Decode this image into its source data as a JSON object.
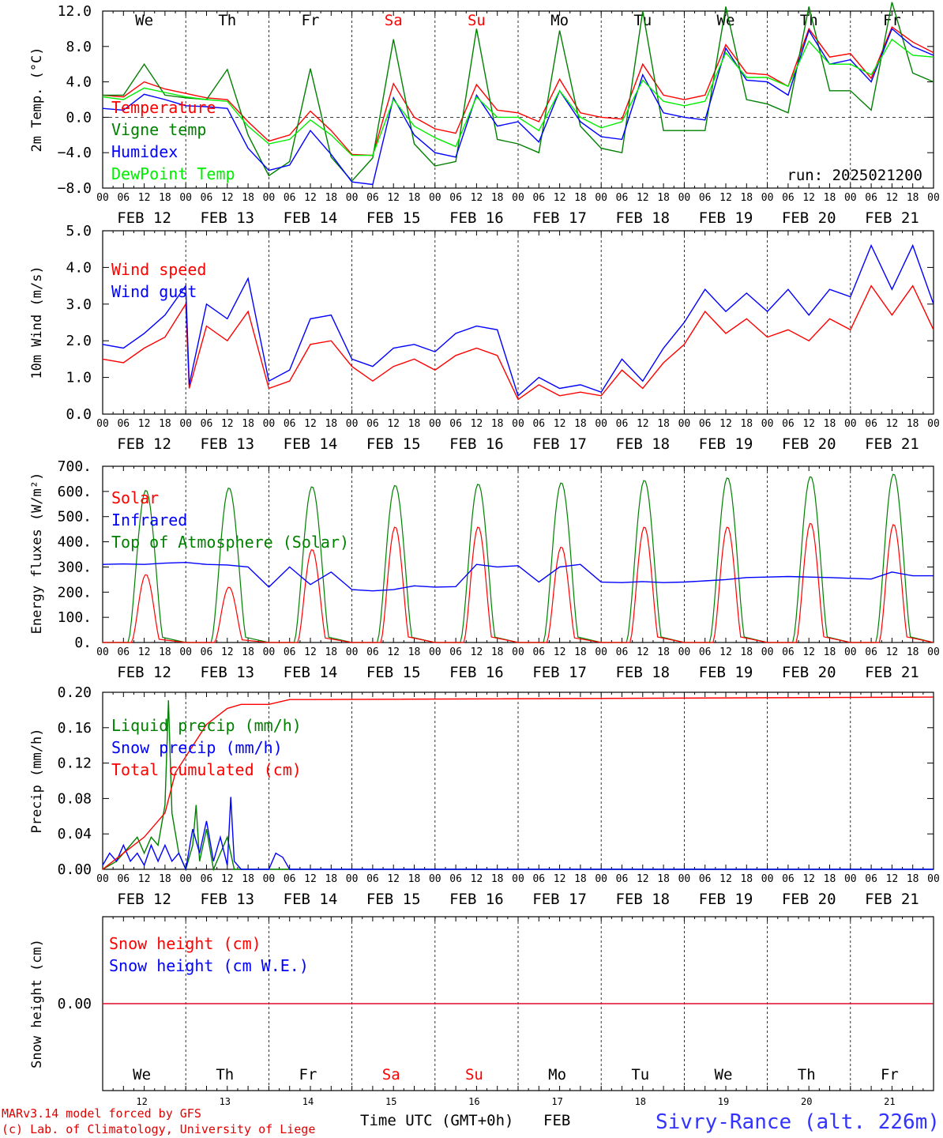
{
  "run_label": "run: 2025021200",
  "footer": {
    "model": "MARv3.14 model forced by GFS",
    "credit": "(c) Lab. of Climatology, University of Liege",
    "time_axis": "Time UTC (GMT+0h)",
    "month": "FEB",
    "location": "Sivry-Rance (alt. 226m)"
  },
  "days": [
    "12",
    "13",
    "14",
    "15",
    "16",
    "17",
    "18",
    "19",
    "20",
    "21"
  ],
  "date_labels": [
    "FEB 12",
    "FEB 13",
    "FEB 14",
    "FEB 15",
    "FEB 16",
    "FEB 17",
    "FEB 18",
    "FEB 19",
    "FEB 20",
    "FEB 21"
  ],
  "weekdays": [
    "We",
    "Th",
    "Fr",
    "Sa",
    "Su",
    "Mo",
    "Tu",
    "We",
    "Th",
    "Fr"
  ],
  "weekday_colors": [
    "#000000",
    "#000000",
    "#000000",
    "#ff0000",
    "#ff0000",
    "#000000",
    "#000000",
    "#000000",
    "#000000",
    "#000000"
  ],
  "hour_ticks": [
    "00",
    "06",
    "12",
    "18"
  ],
  "colors": {
    "red": "#ff0000",
    "green": "#008000",
    "blue": "#0000ff",
    "lightgreen": "#00ee00"
  },
  "chart_data": [
    {
      "type": "line",
      "ylabel": "2m Temp. (°C)",
      "ylim": [
        -8,
        12
      ],
      "yticks": [
        "12.0",
        "8.0",
        "4.0",
        "0.0",
        "−4.0",
        "−8.0"
      ],
      "x_unit": "hours since FEB 12 00 UTC",
      "series": [
        {
          "name": "Temperature",
          "color": "#ff0000",
          "x": [
            0,
            6,
            12,
            18,
            24,
            30,
            36,
            42,
            48,
            54,
            60,
            66,
            72,
            78,
            84,
            90,
            96,
            102,
            108,
            114,
            120,
            126,
            132,
            138,
            144,
            150,
            156,
            162,
            168,
            174,
            180,
            186,
            192,
            198,
            204,
            210,
            216,
            222,
            228,
            234,
            240
          ],
          "y": [
            2.5,
            2.3,
            4.0,
            3.2,
            2.7,
            2.2,
            2.0,
            -0.5,
            -2.7,
            -2.0,
            0.7,
            -1.5,
            -4.2,
            -4.3,
            3.8,
            0.0,
            -1.3,
            -1.8,
            3.7,
            0.8,
            0.5,
            -0.5,
            4.3,
            0.5,
            0.0,
            -0.2,
            6.0,
            2.5,
            2.0,
            2.5,
            8.2,
            5.0,
            4.8,
            3.5,
            10.0,
            6.8,
            7.2,
            4.4,
            10.2,
            8.5,
            7.3
          ]
        },
        {
          "name": "Vigne temp",
          "color": "#008000",
          "x": [
            0,
            6,
            12,
            18,
            24,
            30,
            36,
            42,
            48,
            54,
            60,
            66,
            72,
            78,
            84,
            90,
            96,
            102,
            108,
            114,
            120,
            126,
            132,
            138,
            144,
            150,
            156,
            162,
            168,
            174,
            180,
            186,
            192,
            198,
            204,
            210,
            216,
            222,
            228,
            234,
            240
          ],
          "y": [
            2.5,
            2.5,
            6.0,
            2.5,
            2.2,
            2.0,
            5.4,
            -2.0,
            -6.6,
            -5.0,
            5.5,
            -4.5,
            -7.2,
            -4.6,
            8.8,
            -3.0,
            -5.5,
            -5.0,
            10.0,
            -2.5,
            -3.0,
            -4.0,
            9.8,
            -1.0,
            -3.5,
            -4.0,
            12.0,
            -1.5,
            -1.5,
            -1.5,
            12.5,
            2.0,
            1.5,
            0.5,
            12.5,
            3.0,
            3.0,
            0.8,
            13.0,
            5.0,
            4.0
          ]
        },
        {
          "name": "Humidex",
          "color": "#0000ff",
          "x": [
            0,
            6,
            12,
            18,
            24,
            30,
            36,
            42,
            48,
            54,
            60,
            66,
            72,
            78,
            84,
            90,
            96,
            102,
            108,
            114,
            120,
            126,
            132,
            138,
            144,
            150,
            156,
            162,
            168,
            174,
            180,
            186,
            192,
            198,
            204,
            210,
            216,
            222,
            228,
            234,
            240
          ],
          "y": [
            1.0,
            0.8,
            2.6,
            2.0,
            1.3,
            1.2,
            1.0,
            -3.5,
            -6.0,
            -5.4,
            -1.5,
            -4.2,
            -7.3,
            -7.6,
            2.2,
            -2.0,
            -4.0,
            -4.5,
            2.5,
            -1.0,
            -0.5,
            -2.8,
            3.0,
            -0.5,
            -2.2,
            -2.5,
            4.8,
            0.5,
            0.0,
            -0.3,
            7.8,
            4.2,
            4.0,
            2.5,
            9.8,
            6.0,
            6.5,
            4.0,
            10.0,
            8.0,
            7.0
          ]
        },
        {
          "name": "DewPoint Temp",
          "color": "#00ee00",
          "x": [
            0,
            6,
            12,
            18,
            24,
            30,
            36,
            42,
            48,
            54,
            60,
            66,
            72,
            78,
            84,
            90,
            96,
            102,
            108,
            114,
            120,
            126,
            132,
            138,
            144,
            150,
            156,
            162,
            168,
            174,
            180,
            186,
            192,
            198,
            204,
            210,
            216,
            222,
            228,
            234,
            240
          ],
          "y": [
            2.3,
            2.0,
            3.3,
            2.8,
            2.3,
            2.0,
            1.8,
            -1.0,
            -3.0,
            -2.5,
            -0.3,
            -2.0,
            -4.3,
            -4.3,
            2.0,
            -1.0,
            -2.3,
            -3.3,
            2.3,
            0.0,
            0.0,
            -1.5,
            3.0,
            0.0,
            -1.2,
            -0.5,
            4.2,
            1.8,
            1.3,
            1.8,
            7.3,
            4.5,
            4.5,
            3.5,
            8.6,
            6.0,
            6.0,
            4.8,
            8.8,
            7.0,
            6.8
          ]
        }
      ]
    },
    {
      "type": "line",
      "ylabel": "10m Wind (m/s)",
      "ylim": [
        0,
        5
      ],
      "yticks": [
        "5.0",
        "4.0",
        "3.0",
        "2.0",
        "1.0",
        "0.0"
      ],
      "series": [
        {
          "name": "Wind speed",
          "color": "#ff0000",
          "x": [
            0,
            6,
            12,
            18,
            24,
            25,
            30,
            36,
            42,
            48,
            54,
            60,
            66,
            72,
            78,
            84,
            90,
            96,
            102,
            108,
            114,
            120,
            126,
            132,
            138,
            144,
            150,
            156,
            162,
            168,
            174,
            180,
            186,
            192,
            198,
            204,
            210,
            216,
            222,
            228,
            234,
            240
          ],
          "y": [
            1.5,
            1.4,
            1.8,
            2.1,
            3.0,
            0.7,
            2.4,
            2.0,
            2.8,
            0.7,
            0.9,
            1.9,
            2.0,
            1.3,
            0.9,
            1.3,
            1.5,
            1.2,
            1.6,
            1.8,
            1.6,
            0.4,
            0.8,
            0.5,
            0.6,
            0.5,
            1.2,
            0.7,
            1.4,
            1.9,
            2.8,
            2.2,
            2.6,
            2.1,
            2.3,
            2.0,
            2.6,
            2.3,
            3.5,
            2.7,
            3.5,
            2.3
          ]
        },
        {
          "name": "Wind gust",
          "color": "#0000ff",
          "x": [
            0,
            6,
            12,
            18,
            24,
            25,
            30,
            36,
            42,
            48,
            54,
            60,
            66,
            72,
            78,
            84,
            90,
            96,
            102,
            108,
            114,
            120,
            126,
            132,
            138,
            144,
            150,
            156,
            162,
            168,
            174,
            180,
            186,
            192,
            198,
            204,
            210,
            216,
            222,
            228,
            234,
            240
          ],
          "y": [
            1.9,
            1.8,
            2.2,
            2.7,
            3.5,
            0.8,
            3.0,
            2.6,
            3.7,
            0.9,
            1.2,
            2.6,
            2.7,
            1.5,
            1.3,
            1.8,
            1.9,
            1.7,
            2.2,
            2.4,
            2.3,
            0.5,
            1.0,
            0.7,
            0.8,
            0.6,
            1.5,
            0.9,
            1.8,
            2.5,
            3.4,
            2.8,
            3.3,
            2.8,
            3.4,
            2.7,
            3.4,
            3.2,
            4.6,
            3.4,
            4.6,
            3.0
          ]
        }
      ]
    },
    {
      "type": "line",
      "ylabel": "Energy fluxes (W/m²)",
      "ylim": [
        0,
        700
      ],
      "yticks": [
        "700.",
        "600.",
        "500.",
        "400.",
        "300.",
        "200.",
        "100.",
        "0."
      ],
      "series": [
        {
          "name": "Solar",
          "color": "#ff0000",
          "peaks": [
            270,
            220,
            370,
            460,
            460,
            380,
            460,
            460,
            475,
            470
          ]
        },
        {
          "name": "Infrared",
          "color": "#0000ff",
          "x": [
            0,
            6,
            12,
            18,
            24,
            30,
            36,
            42,
            48,
            54,
            60,
            66,
            72,
            78,
            84,
            90,
            96,
            102,
            108,
            114,
            120,
            126,
            132,
            138,
            144,
            150,
            156,
            162,
            168,
            174,
            180,
            186,
            192,
            198,
            204,
            210,
            216,
            222,
            228,
            234,
            240
          ],
          "y": [
            310,
            312,
            310,
            315,
            318,
            310,
            308,
            300,
            220,
            300,
            230,
            280,
            210,
            205,
            210,
            225,
            220,
            222,
            310,
            300,
            305,
            240,
            300,
            310,
            240,
            238,
            242,
            238,
            240,
            245,
            250,
            258,
            260,
            262,
            260,
            258,
            255,
            252,
            280,
            265,
            265
          ]
        },
        {
          "name": "Top of Atmosphere (Solar)",
          "color": "#008000",
          "peaks": [
            605,
            615,
            620,
            625,
            630,
            635,
            645,
            655,
            660,
            670
          ]
        }
      ]
    },
    {
      "type": "line",
      "ylabel": "Precip (mm/h)",
      "ylim": [
        0,
        0.22
      ],
      "yticks": [
        "0.20",
        "0.16",
        "0.12",
        "0.08",
        "0.04",
        "0.00"
      ],
      "series": [
        {
          "name": "Liquid precip (mm/h)",
          "color": "#008000",
          "x": [
            0,
            4,
            8,
            10,
            12,
            14,
            16,
            18,
            19,
            20,
            22,
            24,
            26,
            27,
            28,
            30,
            32,
            34,
            36,
            38,
            40,
            44,
            60,
            240
          ],
          "y": [
            0,
            0.01,
            0.03,
            0.04,
            0.02,
            0.04,
            0.03,
            0.08,
            0.21,
            0.07,
            0.02,
            0.0,
            0.03,
            0.08,
            0.01,
            0.05,
            0.0,
            0.02,
            0.04,
            0.0,
            0.0,
            0.0,
            0.0,
            0.0
          ]
        },
        {
          "name": "Snow precip (mm/h)",
          "color": "#0000ff",
          "x": [
            0,
            2,
            4,
            6,
            8,
            10,
            12,
            14,
            16,
            18,
            20,
            22,
            24,
            26,
            28,
            30,
            32,
            34,
            36,
            37,
            38,
            40,
            42,
            48,
            50,
            52,
            54,
            60,
            240
          ],
          "y": [
            0.005,
            0.02,
            0.01,
            0.03,
            0.01,
            0.02,
            0.005,
            0.03,
            0.01,
            0.03,
            0.01,
            0.02,
            0.0,
            0.05,
            0.02,
            0.06,
            0.01,
            0.04,
            0.005,
            0.09,
            0.01,
            0.0,
            0.0,
            0.0,
            0.02,
            0.015,
            0.0,
            0.0,
            0.0
          ]
        },
        {
          "name": "Total cumulated (cm)",
          "color": "#ff0000",
          "x": [
            0,
            6,
            12,
            18,
            21,
            24,
            30,
            36,
            40,
            48,
            54,
            60,
            240
          ],
          "y": [
            0,
            0.02,
            0.04,
            0.07,
            0.12,
            0.14,
            0.18,
            0.2,
            0.205,
            0.205,
            0.211,
            0.211,
            0.214
          ]
        }
      ]
    },
    {
      "type": "line",
      "ylabel": "Snow height (cm)",
      "yticks": [
        "0.00"
      ],
      "series": [
        {
          "name": "Snow height (cm)",
          "color": "#ff0000",
          "x": [
            0,
            240
          ],
          "y": [
            0,
            0
          ]
        },
        {
          "name": "Snow height (cm W.E.)",
          "color": "#0000ff",
          "x": [
            0,
            240
          ],
          "y": [
            0,
            0
          ]
        }
      ]
    }
  ]
}
